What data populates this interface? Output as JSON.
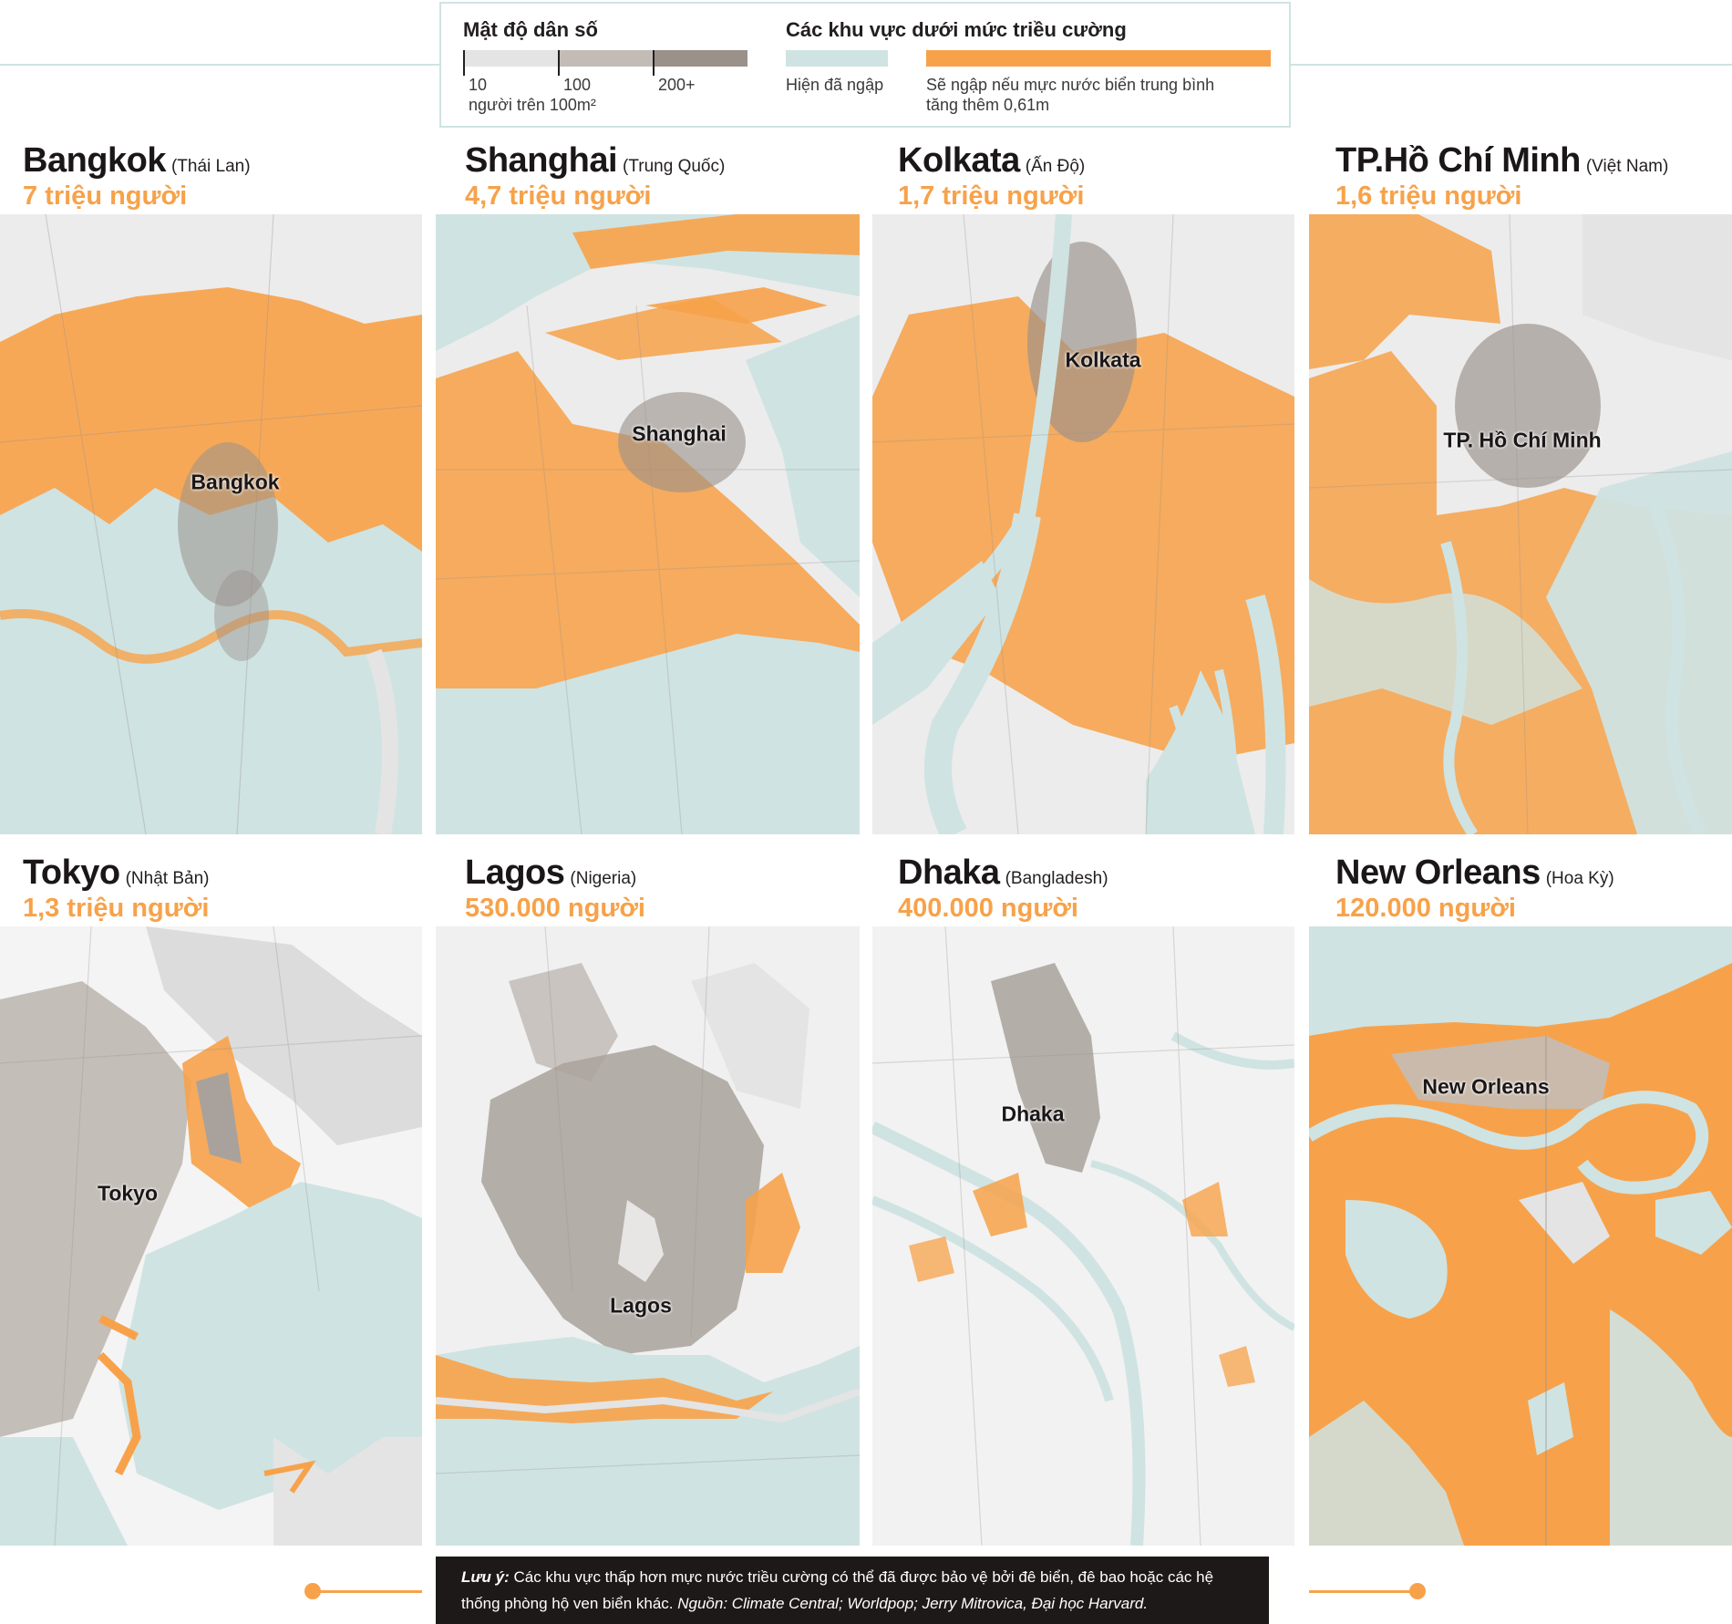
{
  "colors": {
    "water": "#cfe3e2",
    "flood_risk": "#f7a24a",
    "density_low": "#e4e4e4",
    "density_mid": "#c3bcb6",
    "density_high": "#9a918b",
    "land": "#ececec",
    "dark_note_bg": "#1e1919"
  },
  "legend": {
    "density_title": "Mật độ dân số",
    "density_ticks": [
      "10",
      "100",
      "200+"
    ],
    "density_unit": "người trên 100m²",
    "tidal_title": "Các khu vực dưới mức triều cường",
    "flooded_label": "Hiện đã ngập",
    "risk_label_1": "Sẽ ngập nếu mực nước biển trung bình",
    "risk_label_2": "tăng thêm 0,61m"
  },
  "cities": [
    {
      "name": "Bangkok",
      "country": "(Thái Lan)",
      "population": "7 triệu người",
      "map_label": "Bangkok"
    },
    {
      "name": "Shanghai",
      "country": "(Trung Quốc)",
      "population": "4,7 triệu người",
      "map_label": "Shanghai"
    },
    {
      "name": "Kolkata",
      "country": "(Ấn Độ)",
      "population": "1,7 triệu người",
      "map_label": "Kolkata"
    },
    {
      "name": "TP.Hồ Chí Minh",
      "country": "(Việt Nam)",
      "population": "1,6 triệu người",
      "map_label": "TP. Hồ Chí Minh"
    },
    {
      "name": "Tokyo",
      "country": "(Nhật Bản)",
      "population": "1,3 triệu người",
      "map_label": "Tokyo"
    },
    {
      "name": "Lagos",
      "country": "(Nigeria)",
      "population": "530.000 người",
      "map_label": "Lagos"
    },
    {
      "name": "Dhaka",
      "country": "(Bangladesh)",
      "population": "400.000 người",
      "map_label": "Dhaka"
    },
    {
      "name": "New Orleans",
      "country": "(Hoa Kỳ)",
      "population": "120.000 người",
      "map_label": "New Orleans"
    }
  ],
  "note": {
    "label": "Lưu ý:",
    "text": " Các khu vực thấp hơn mực nước triều cường có thể đã được bảo vệ bởi đê biển, đê bao hoặc các hệ thống phòng hộ ven biển khác. ",
    "source": "Nguồn: Climate Central; Worldpop; Jerry Mitrovica, Đại học Harvard."
  }
}
